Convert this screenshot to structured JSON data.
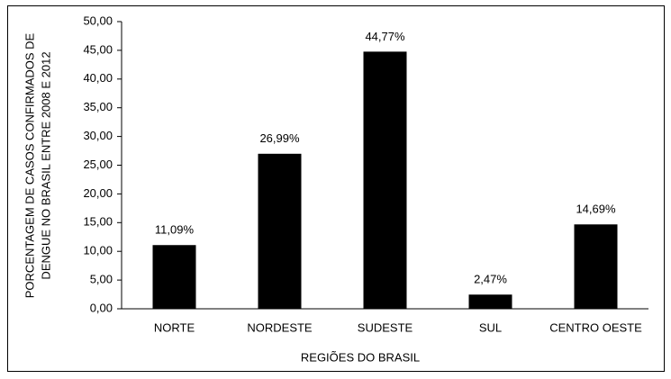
{
  "chart_data": {
    "type": "bar",
    "ylabel": [
      "PORCENTAGEM DE CASOS CONFIRMADOS DE",
      "DENGUE NO BRASIL ENTRE 2008 E 2012"
    ],
    "xlabel": "REGIÕES DO BRASIL",
    "categories": [
      "NORTE",
      "NORDESTE",
      "SUDESTE",
      "SUL",
      "CENTRO OESTE"
    ],
    "values": [
      11.09,
      26.99,
      44.77,
      2.47,
      14.69
    ],
    "value_labels": [
      "11,09%",
      "26,99%",
      "44,77%",
      "2,47%",
      "14,69%"
    ],
    "color": "#000000",
    "ylim": [
      0,
      50
    ],
    "yticks": [
      {
        "value": 0,
        "label": "0,00"
      },
      {
        "value": 5,
        "label": "5,00"
      },
      {
        "value": 10,
        "label": "10,00"
      },
      {
        "value": 15,
        "label": "15,00"
      },
      {
        "value": 20,
        "label": "20,00"
      },
      {
        "value": 25,
        "label": "25,00"
      },
      {
        "value": 30,
        "label": "30,00"
      },
      {
        "value": 35,
        "label": "35,00"
      },
      {
        "value": 40,
        "label": "40,00"
      },
      {
        "value": 45,
        "label": "45,00"
      },
      {
        "value": 50,
        "label": "50,00"
      }
    ],
    "grid": false
  }
}
